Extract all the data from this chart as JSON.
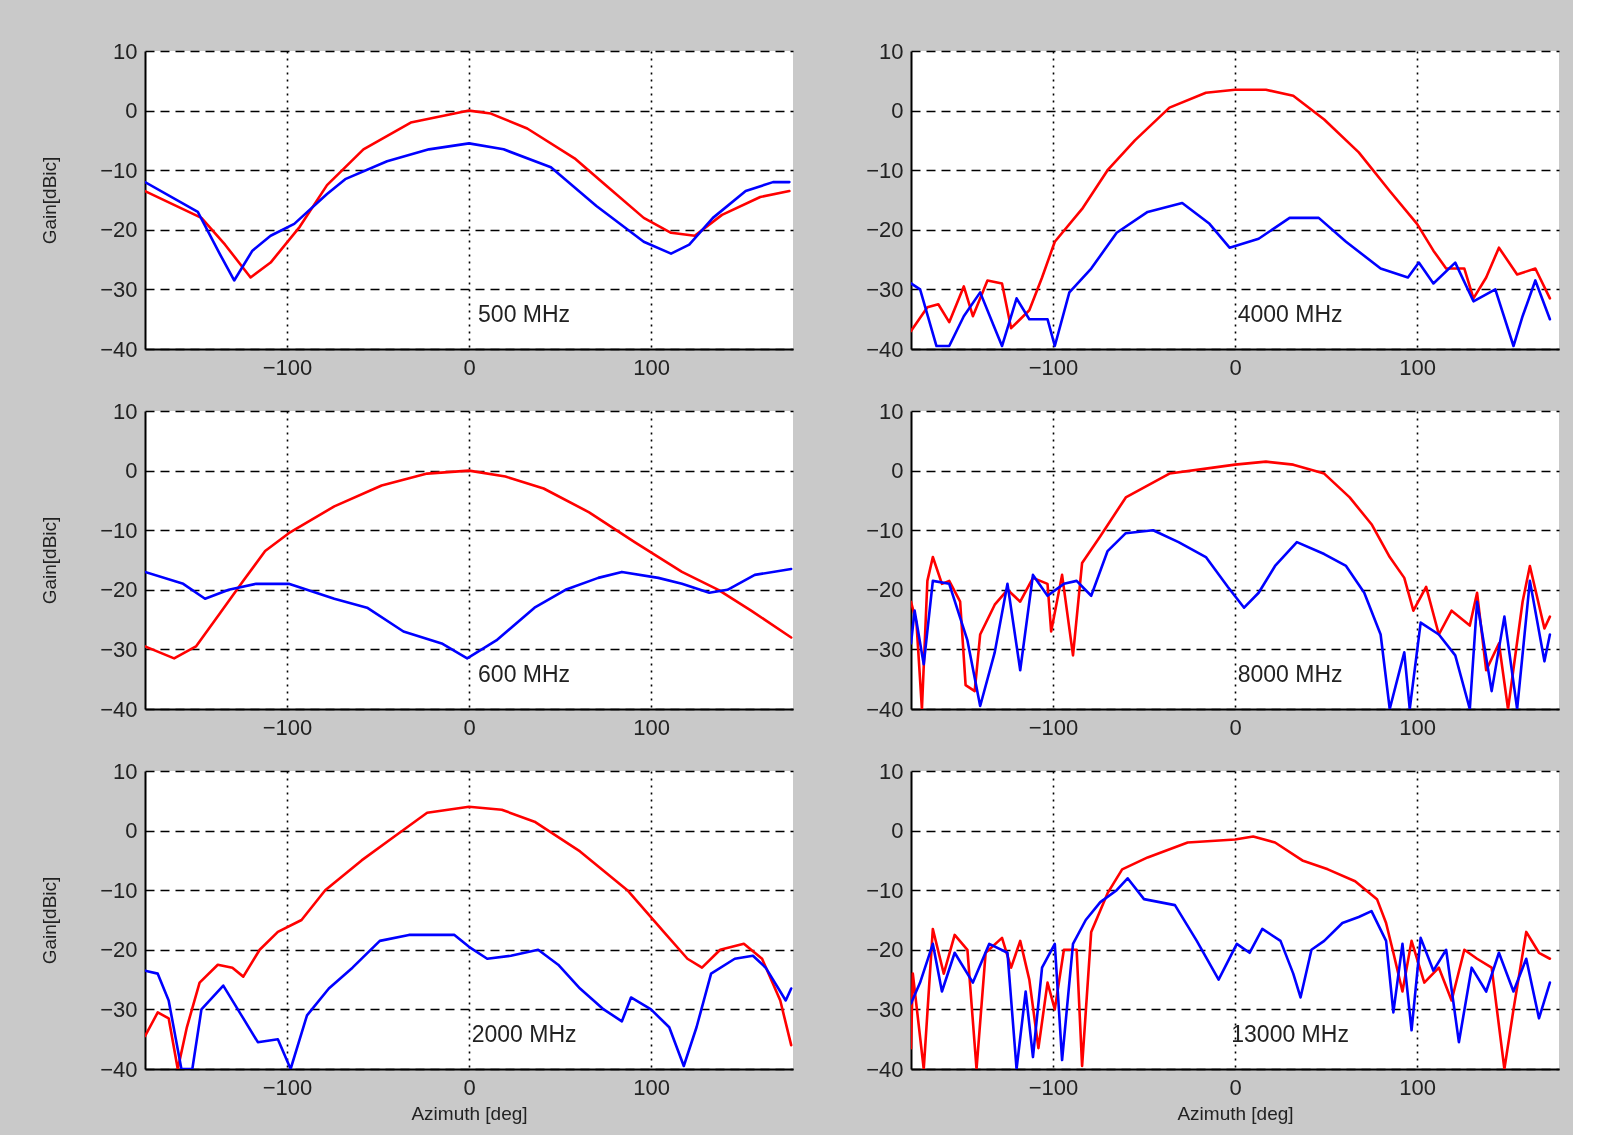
{
  "chart_data": [
    {
      "type": "line",
      "ylabel": "Gain[dBic]",
      "annotations": [
        "500 MHz"
      ],
      "xlim": [
        -178,
        178
      ],
      "ylim": [
        -40,
        10
      ],
      "xticks": [
        -100,
        0,
        100
      ],
      "yticks": [
        -40,
        -30,
        -20,
        -10,
        0,
        10
      ],
      "grid": true,
      "series": [
        {
          "color": "#ff0000",
          "x": [
            -178,
            -147,
            -134,
            -120,
            -109,
            -93,
            -78,
            -58,
            -32,
            0,
            12,
            32,
            58,
            75,
            96,
            111,
            124,
            139,
            160,
            176
          ],
          "values": [
            -13.5,
            -18,
            -22.5,
            -28,
            -25.5,
            -19.5,
            -12.5,
            -6.5,
            -2,
            0,
            -0.5,
            -3,
            -8,
            -12.5,
            -18,
            -20.5,
            -21,
            -17.5,
            -14.5,
            -13.5
          ]
        },
        {
          "color": "#0000ff",
          "x": [
            -178,
            -149,
            -137,
            -129,
            -119,
            -109,
            -96,
            -78,
            -68,
            -45,
            -22,
            0,
            19,
            45,
            70,
            96,
            111,
            121,
            134,
            152,
            167,
            176
          ],
          "values": [
            -12,
            -17,
            -24,
            -28.5,
            -23.5,
            -21,
            -19,
            -14,
            -11.5,
            -8.5,
            -6.5,
            -5.5,
            -6.5,
            -9.5,
            -16,
            -22,
            -24,
            -22.5,
            -18,
            -13.5,
            -12,
            -12
          ]
        }
      ]
    },
    {
      "type": "line",
      "annotations": [
        "4000 MHz"
      ],
      "xlim": [
        -178,
        178
      ],
      "ylim": [
        -40,
        10
      ],
      "xticks": [
        -100,
        0,
        100
      ],
      "yticks": [
        -40,
        -30,
        -20,
        -10,
        0,
        10
      ],
      "grid": true,
      "series": [
        {
          "color": "#ff0000",
          "x": [
            -178,
            -169,
            -163,
            -157,
            -149,
            -144,
            -136,
            -128,
            -123,
            -113,
            -106,
            -99,
            -84,
            -70,
            -55,
            -36,
            -16,
            0,
            17,
            32,
            49,
            68,
            85,
            100,
            109,
            116,
            126,
            131,
            138,
            145,
            155,
            165,
            173
          ],
          "values": [
            -37,
            -33,
            -32.5,
            -35.5,
            -29.5,
            -34.5,
            -28.5,
            -29,
            -36.5,
            -33.5,
            -28,
            -22,
            -16.5,
            -10,
            -5,
            0.5,
            3,
            3.5,
            3.5,
            2.5,
            -1.5,
            -7,
            -13.5,
            -19,
            -23.5,
            -26.5,
            -26.5,
            -31.5,
            -28,
            -23,
            -27.5,
            -26.5,
            -31.5
          ]
        },
        {
          "color": "#0000ff",
          "x": [
            -178,
            -173,
            -164,
            -157,
            -149,
            -140,
            -132,
            -128,
            -120,
            -113,
            -103,
            -99,
            -91,
            -79,
            -65,
            -48,
            -29,
            -14,
            -3,
            13,
            30,
            46,
            61,
            80,
            95,
            101,
            109,
            121,
            131,
            143,
            153,
            158,
            165,
            173
          ],
          "values": [
            -29,
            -30,
            -39.5,
            -39.5,
            -34.5,
            -30.5,
            -36.5,
            -39.5,
            -31.5,
            -35,
            -35,
            -39.5,
            -30.5,
            -26.5,
            -20.5,
            -17,
            -15.5,
            -19,
            -23,
            -21.5,
            -18,
            -18,
            -22,
            -26.5,
            -28,
            -25.5,
            -29,
            -25.5,
            -32,
            -30,
            -39.5,
            -34.5,
            -28.5,
            -35
          ]
        }
      ]
    },
    {
      "type": "line",
      "ylabel": "Gain[dBic]",
      "annotations": [
        "600 MHz"
      ],
      "xlim": [
        -178,
        178
      ],
      "ylim": [
        -40,
        10
      ],
      "xticks": [
        -100,
        0,
        100
      ],
      "yticks": [
        -40,
        -30,
        -20,
        -10,
        0,
        10
      ],
      "grid": true,
      "series": [
        {
          "color": "#ff0000",
          "x": [
            -178,
            -162,
            -150,
            -137,
            -124,
            -112,
            -99,
            -74,
            -48,
            -23,
            0,
            20,
            41,
            66,
            91,
            117,
            137,
            155,
            177
          ],
          "values": [
            -29.5,
            -31.5,
            -29.5,
            -24,
            -18.5,
            -13.5,
            -10.5,
            -6,
            -2.5,
            -0.5,
            0,
            -1,
            -3,
            -7,
            -12,
            -17,
            -20,
            -23.5,
            -28
          ]
        },
        {
          "color": "#0000ff",
          "x": [
            -178,
            -157,
            -145,
            -132,
            -117,
            -99,
            -74,
            -56,
            -36,
            -15,
            -1,
            15,
            36,
            53,
            71,
            84,
            104,
            117,
            132,
            142,
            157,
            177
          ],
          "values": [
            -17,
            -19,
            -21.5,
            -20,
            -19,
            -19,
            -21.5,
            -23,
            -27,
            -29,
            -31.5,
            -28.5,
            -23,
            -20,
            -18,
            -17,
            -18,
            -19,
            -20.5,
            -20,
            -17.5,
            -16.5
          ]
        }
      ]
    },
    {
      "type": "line",
      "annotations": [
        "8000 MHz"
      ],
      "xlim": [
        -178,
        178
      ],
      "ylim": [
        -40,
        10
      ],
      "xticks": [
        -100,
        0,
        100
      ],
      "yticks": [
        -40,
        -30,
        -20,
        -10,
        0,
        10
      ],
      "grid": true,
      "series": [
        {
          "color": "#ff0000",
          "x": [
            -178,
            -175,
            -172,
            -169,
            -166,
            -161,
            -157,
            -151,
            -148,
            -143,
            -140,
            -132,
            -125,
            -118,
            -111,
            -103,
            -101,
            -95,
            -89,
            -84,
            -74,
            -60,
            -36,
            -12,
            0,
            17,
            32,
            49,
            63,
            75,
            85,
            93,
            98,
            105,
            112,
            119,
            129,
            133,
            138,
            145,
            150,
            158,
            162,
            170,
            173
          ],
          "values": [
            -22,
            -25.5,
            -40,
            -18.5,
            -14.5,
            -19,
            -18.5,
            -22,
            -36,
            -37,
            -27.5,
            -22.5,
            -20,
            -22,
            -18,
            -19,
            -27,
            -17.5,
            -31,
            -15.5,
            -11,
            -4.5,
            -0.5,
            0.5,
            1,
            1.5,
            1,
            -0.5,
            -4.5,
            -9,
            -14.5,
            -18,
            -23.5,
            -19.5,
            -27.5,
            -23.5,
            -26,
            -20.5,
            -33.5,
            -29,
            -40,
            -22,
            -16,
            -26.5,
            -24.5
          ]
        },
        {
          "color": "#0000ff",
          "x": [
            -178,
            -176,
            -171,
            -166,
            -157,
            -147,
            -140,
            -132,
            -125,
            -118,
            -111,
            -103,
            -94,
            -87,
            -79,
            -70,
            -60,
            -45,
            -31,
            -16,
            -4,
            5,
            13,
            22,
            34,
            49,
            61,
            71,
            80,
            85,
            93,
            96,
            102,
            112,
            121,
            129,
            133,
            141,
            148,
            155,
            162,
            170,
            173
          ],
          "values": [
            -29,
            -23.5,
            -32.5,
            -18.5,
            -19,
            -28.5,
            -39.5,
            -30.5,
            -19,
            -33.5,
            -17.5,
            -21,
            -19,
            -18.5,
            -21,
            -13.5,
            -10.5,
            -10,
            -12,
            -14.5,
            -19.5,
            -23,
            -20.5,
            -16,
            -12,
            -14,
            -16,
            -20.5,
            -27.5,
            -40,
            -30.5,
            -40,
            -25.5,
            -27.5,
            -31,
            -40,
            -22,
            -37,
            -24.5,
            -40,
            -18.5,
            -32,
            -27.5
          ]
        }
      ]
    },
    {
      "type": "line",
      "ylabel": "Gain[dBic]",
      "xlabel": "Azimuth [deg]",
      "annotations": [
        "2000 MHz"
      ],
      "xlim": [
        -178,
        178
      ],
      "ylim": [
        -40,
        10
      ],
      "xticks": [
        -100,
        0,
        100
      ],
      "yticks": [
        -40,
        -30,
        -20,
        -10,
        0,
        10
      ],
      "grid": true,
      "series": [
        {
          "color": "#ff0000",
          "x": [
            -178,
            -171,
            -165,
            -160,
            -155,
            -148,
            -138,
            -130,
            -124,
            -115,
            -105,
            -92,
            -79,
            -59,
            -41,
            -23,
            0,
            18,
            36,
            61,
            87,
            107,
            120,
            128,
            138,
            151,
            161,
            171,
            177
          ],
          "values": [
            -34.5,
            -30.5,
            -31.5,
            -40,
            -33,
            -25.5,
            -22.5,
            -23,
            -24.5,
            -20,
            -17,
            -15,
            -10,
            -5,
            -1,
            3,
            4,
            3.5,
            1.5,
            -3.5,
            -10,
            -17,
            -21.5,
            -23,
            -20,
            -19,
            -21.5,
            -28.5,
            -36
          ]
        },
        {
          "color": "#0000ff",
          "x": [
            -178,
            -171,
            -165,
            -158,
            -152,
            -147,
            -135,
            -125,
            -116,
            -105,
            -98,
            -89,
            -77,
            -64,
            -49,
            -33,
            -8,
            0,
            10,
            23,
            38,
            49,
            61,
            74,
            84,
            89,
            100,
            110,
            118,
            125,
            133,
            146,
            156,
            163,
            174,
            177
          ],
          "values": [
            -23.5,
            -24,
            -28.5,
            -40,
            -40,
            -30,
            -26,
            -31,
            -35.5,
            -35,
            -40,
            -31,
            -26.5,
            -23,
            -18.5,
            -17.5,
            -17.5,
            -19.5,
            -21.5,
            -21,
            -20,
            -22.5,
            -26.5,
            -30,
            -32,
            -28,
            -30,
            -33,
            -39.5,
            -33,
            -24,
            -21.5,
            -21,
            -23,
            -28.5,
            -26.5
          ]
        }
      ]
    },
    {
      "type": "line",
      "xlabel": "Azimuth [deg]",
      "annotations": [
        "13000 MHz"
      ],
      "xlim": [
        -178,
        178
      ],
      "ylim": [
        -40,
        10
      ],
      "xticks": [
        -100,
        0,
        100
      ],
      "yticks": [
        -40,
        -30,
        -20,
        -10,
        0,
        10
      ],
      "grid": true,
      "series": [
        {
          "color": "#ff0000",
          "x": [
            -178,
            -177,
            -171,
            -166,
            -160,
            -154,
            -147,
            -142,
            -137,
            -128,
            -123,
            -118,
            -113,
            -108,
            -103,
            -99,
            -94,
            -87,
            -84,
            -79,
            -70,
            -62,
            -48,
            -26,
            0,
            10,
            22,
            37,
            51,
            66,
            78,
            83,
            87,
            92,
            97,
            104,
            112,
            119,
            126,
            133,
            141,
            148,
            153,
            160,
            167,
            173
          ],
          "values": [
            -36.5,
            -24,
            -40,
            -16.5,
            -24,
            -17.5,
            -20,
            -40,
            -20.5,
            -18,
            -23,
            -18.5,
            -25,
            -36.5,
            -25.5,
            -30,
            -20,
            -20,
            -39.5,
            -17,
            -10.5,
            -6.5,
            -4.5,
            -2,
            -1.5,
            -1,
            -2,
            -5,
            -6.5,
            -8.5,
            -11.5,
            -15.5,
            -20.5,
            -27,
            -18.5,
            -25.5,
            -23,
            -28.5,
            -20,
            -21.5,
            -23,
            -40,
            -30,
            -17,
            -20.5,
            -21.5
          ]
        },
        {
          "color": "#0000ff",
          "x": [
            -178,
            -173,
            -166,
            -161,
            -154,
            -144,
            -135,
            -125,
            -120,
            -115,
            -111,
            -106,
            -99,
            -95,
            -89,
            -82,
            -74,
            -65,
            -59,
            -50,
            -33,
            -21,
            -9,
            1,
            8,
            15,
            25,
            32,
            36,
            42,
            49,
            59,
            68,
            75,
            83,
            87,
            92,
            97,
            102,
            109,
            116,
            123,
            130,
            138,
            145,
            153,
            160,
            167,
            173
          ],
          "values": [
            -29,
            -25.5,
            -19,
            -27,
            -20.5,
            -25.5,
            -19,
            -20.5,
            -40,
            -27,
            -38,
            -23,
            -19,
            -38.5,
            -19,
            -15,
            -12,
            -10,
            -8,
            -11.5,
            -12.5,
            -18.5,
            -25,
            -19,
            -20.5,
            -16.5,
            -18.5,
            -24,
            -28,
            -20,
            -18.5,
            -15.5,
            -14.5,
            -13.5,
            -18.5,
            -30.5,
            -19,
            -33.5,
            -18,
            -23.5,
            -20,
            -35.5,
            -23,
            -27,
            -20.5,
            -27,
            -21.5,
            -31.5,
            -25.5
          ]
        }
      ]
    }
  ]
}
